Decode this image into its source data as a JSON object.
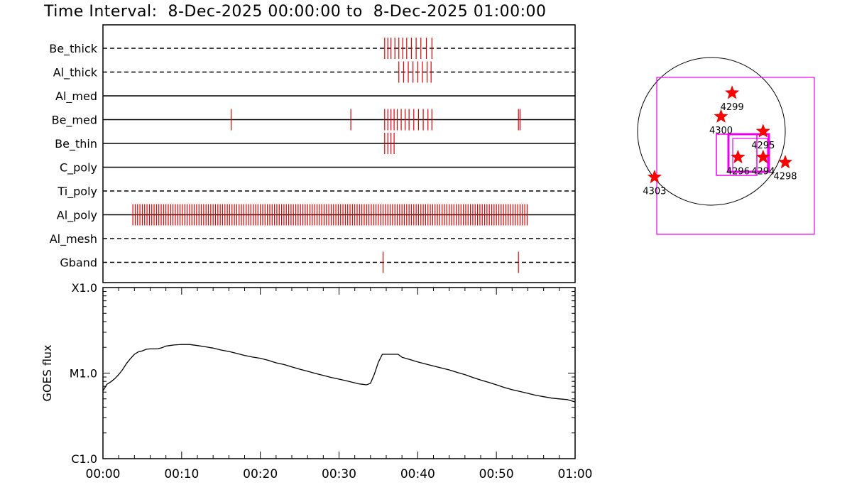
{
  "title": "Time Interval:  8-Dec-2025 00:00:00 to  8-Dec-2025 01:00:00",
  "chart_data": [
    {
      "type": "event-timeline",
      "x_unit": "minutes after 8-Dec-2025 00:00:00",
      "xlim": [
        0,
        60
      ],
      "rows": [
        {
          "label": "Be_thick",
          "line": "dashed",
          "events": [
            35.8,
            36.2,
            36.6,
            37.1,
            37.6,
            38.1,
            38.6,
            39.2,
            39.8,
            40.4,
            41.1,
            41.8
          ]
        },
        {
          "label": "Al_thick",
          "line": "dashed",
          "events": [
            37.6,
            38.2,
            38.8,
            39.4,
            40.0,
            40.6,
            41.2,
            41.7
          ]
        },
        {
          "label": "Al_med",
          "line": "solid",
          "events": []
        },
        {
          "label": "Be_med",
          "line": "solid",
          "events": [
            16.3,
            31.5,
            35.8,
            36.2,
            36.6,
            37.0,
            37.4,
            37.9,
            38.4,
            38.9,
            39.5,
            40.1,
            40.7,
            41.3,
            41.8,
            52.8,
            53.0
          ]
        },
        {
          "label": "Be_thin",
          "line": "solid",
          "events": [
            35.8,
            36.2,
            36.6,
            37.0
          ]
        },
        {
          "label": "C_poly",
          "line": "solid",
          "events": []
        },
        {
          "label": "Ti_poly",
          "line": "dashed",
          "events": []
        },
        {
          "label": "Al_poly",
          "line": "solid",
          "events": [
            3.8,
            4.1,
            4.4,
            4.7,
            5.0,
            5.3,
            5.6,
            5.9,
            6.2,
            6.5,
            6.8,
            7.1,
            7.4,
            7.7,
            8.0,
            8.3,
            8.6,
            8.9,
            9.2,
            9.5,
            9.8,
            10.1,
            10.4,
            10.7,
            11.0,
            11.3,
            11.6,
            11.9,
            12.2,
            12.5,
            12.8,
            13.1,
            13.4,
            13.7,
            14.0,
            14.3,
            14.6,
            14.9,
            15.2,
            15.5,
            15.8,
            16.1,
            16.4,
            16.7,
            17.0,
            17.3,
            17.6,
            17.9,
            18.2,
            18.5,
            18.8,
            19.1,
            19.4,
            19.7,
            20.0,
            20.3,
            20.6,
            20.9,
            21.2,
            21.5,
            21.8,
            22.1,
            22.4,
            22.7,
            23.0,
            23.3,
            23.6,
            23.9,
            24.2,
            24.5,
            24.8,
            25.1,
            25.4,
            25.7,
            26.0,
            26.3,
            26.6,
            26.9,
            27.2,
            27.5,
            27.8,
            28.1,
            28.4,
            28.7,
            29.0,
            29.3,
            29.6,
            29.9,
            30.2,
            30.5,
            30.8,
            31.1,
            31.4,
            31.7,
            32.0,
            32.3,
            32.6,
            32.9,
            33.2,
            33.5,
            33.8,
            34.1,
            34.4,
            34.7,
            35.0,
            35.3,
            35.6,
            35.9,
            36.2,
            36.5,
            36.8,
            37.1,
            37.4,
            37.7,
            38.0,
            38.3,
            38.6,
            38.9,
            39.2,
            39.5,
            39.8,
            40.1,
            40.4,
            40.7,
            41.0,
            41.3,
            41.6,
            41.9,
            42.2,
            42.5,
            42.8,
            43.1,
            43.4,
            43.7,
            44.0,
            44.3,
            44.6,
            44.9,
            45.2,
            45.5,
            45.8,
            46.1,
            46.4,
            46.7,
            47.0,
            47.3,
            47.6,
            47.9,
            48.2,
            48.5,
            48.8,
            49.1,
            49.4,
            49.7,
            50.0,
            50.3,
            50.6,
            50.9,
            51.2,
            51.5,
            51.8,
            52.1,
            52.4,
            52.7,
            53.0,
            53.3,
            53.6,
            53.9
          ]
        },
        {
          "label": "Al_mesh",
          "line": "dashed",
          "events": []
        },
        {
          "label": "Gband",
          "line": "dashed",
          "events": [
            35.6,
            52.8
          ]
        }
      ]
    },
    {
      "type": "line",
      "ylabel": "GOES flux",
      "yscale": "log",
      "ylim": [
        1e-06,
        0.0001
      ],
      "ytick_labels": [
        "C1.0",
        "M1.0",
        "X1.0"
      ],
      "ytick_values": [
        1e-06,
        1e-05,
        0.0001
      ],
      "xlim": [
        0,
        60
      ],
      "xtick_labels": [
        "00:00",
        "00:10",
        "00:20",
        "00:30",
        "00:40",
        "00:50",
        "01:00"
      ],
      "xtick_values": [
        0,
        10,
        20,
        30,
        40,
        50,
        60
      ],
      "series": [
        {
          "x": [
            0,
            0.5,
            1,
            1.5,
            2,
            2.5,
            3,
            3.5,
            4,
            4.5,
            5,
            5.5,
            6,
            6.5,
            7,
            7.5,
            8,
            8.5,
            9,
            10,
            11,
            12,
            13,
            14,
            15,
            16,
            17,
            18,
            19,
            20,
            21,
            22,
            23,
            24,
            25,
            26,
            27,
            28,
            29,
            30,
            31,
            32,
            32.5,
            33,
            33.5,
            34,
            34.5,
            35,
            35.5,
            36,
            36.5,
            37,
            37.5,
            38,
            39,
            40,
            41,
            42,
            43,
            44,
            45,
            46,
            47,
            48,
            49,
            50,
            51,
            52,
            53,
            54,
            55,
            56,
            57,
            58,
            59,
            60
          ],
          "y": [
            6.2e-06,
            7.4e-06,
            7.9e-06,
            8.6e-06,
            9.6e-06,
            1.1e-05,
            1.3e-05,
            1.48e-05,
            1.66e-05,
            1.77e-05,
            1.82e-05,
            1.9e-05,
            1.92e-05,
            1.92e-05,
            1.93e-05,
            1.98e-05,
            2.07e-05,
            2.1e-05,
            2.13e-05,
            2.16e-05,
            2.16e-05,
            2.1e-05,
            2.03e-05,
            1.96e-05,
            1.86e-05,
            1.79e-05,
            1.7e-05,
            1.61e-05,
            1.54e-05,
            1.49e-05,
            1.41e-05,
            1.32e-05,
            1.26e-05,
            1.18e-05,
            1.11e-05,
            1.05e-05,
            9.9e-06,
            9.4e-06,
            8.9e-06,
            8.5e-06,
            8.1e-06,
            7.7e-06,
            7.5e-06,
            7.4e-06,
            7.3e-06,
            7.6e-06,
            9.8e-06,
            1.34e-05,
            1.66e-05,
            1.66e-05,
            1.66e-05,
            1.66e-05,
            1.66e-05,
            1.53e-05,
            1.44e-05,
            1.35e-05,
            1.28e-05,
            1.21e-05,
            1.15e-05,
            1.09e-05,
            1.02e-05,
            9.6e-06,
            8.9e-06,
            8.3e-06,
            7.8e-06,
            7.3e-06,
            6.8e-06,
            6.4e-06,
            6.1e-06,
            5.8e-06,
            5.5e-06,
            5.3e-06,
            5.1e-06,
            5e-06,
            4.9e-06,
            4.6e-06
          ]
        }
      ]
    },
    {
      "type": "scatter",
      "subtype": "solar-disk-map",
      "note_visible": "region markers with NOAA numbers",
      "points": [
        {
          "label": "4299",
          "x": 28,
          "y": 52
        },
        {
          "label": "4300",
          "x": 13,
          "y": 20
        },
        {
          "label": "4295",
          "x": 70,
          "y": 0
        },
        {
          "label": "4296",
          "x": 36,
          "y": -35
        },
        {
          "label": "4294",
          "x": 70,
          "y": -35
        },
        {
          "label": "4298",
          "x": 100,
          "y": -42
        },
        {
          "label": "4303",
          "x": -77,
          "y": -62
        }
      ]
    }
  ]
}
